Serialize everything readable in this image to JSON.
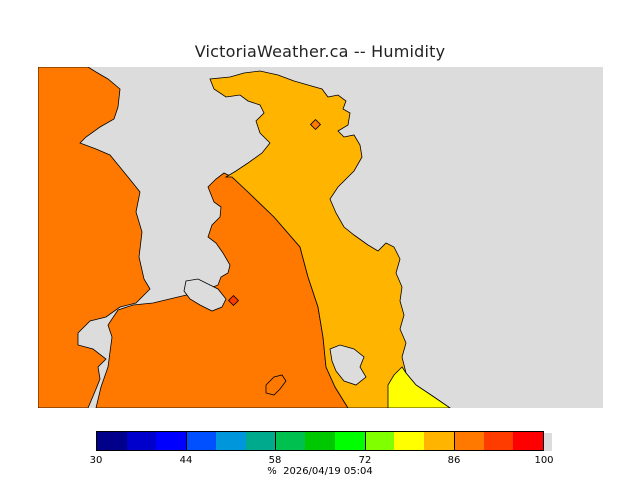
{
  "title": "VictoriaWeather.ca -- Humidity",
  "legend": {
    "min": 30,
    "max": 100,
    "colors": [
      "#00008b",
      "#0000cd",
      "#0000ff",
      "#0050ff",
      "#0096dc",
      "#00aa8c",
      "#00c050",
      "#00c800",
      "#00ff00",
      "#80ff00",
      "#ffff00",
      "#ffb400",
      "#ff7800",
      "#ff3c00",
      "#ff0000"
    ],
    "ticks": [
      {
        "value": 30,
        "label": "30"
      },
      {
        "value": 44,
        "label": "44"
      },
      {
        "value": 58,
        "label": "58"
      },
      {
        "value": 72,
        "label": "72"
      },
      {
        "value": 86,
        "label": "86"
      },
      {
        "value": 100,
        "label": "100"
      }
    ]
  },
  "footer": {
    "unit": "%",
    "timestamp": "2026/04/19 05:04"
  },
  "map": {
    "ocean_color": "#dcdcdc",
    "zones": [
      {
        "name": "high-humidity",
        "color": "#ff7800"
      },
      {
        "name": "mid-humidity",
        "color": "#ffb400"
      },
      {
        "name": "lower-humidity",
        "color": "#ffff00"
      }
    ],
    "stations": [
      "north-station",
      "central-station"
    ]
  }
}
